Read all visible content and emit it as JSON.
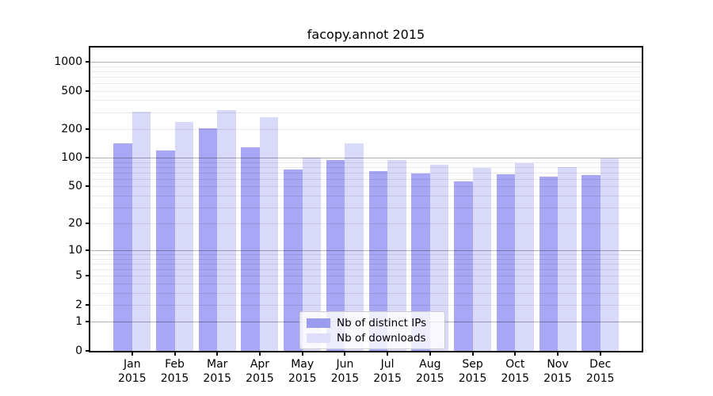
{
  "title": "facopy.annot 2015",
  "chart_data": {
    "type": "bar",
    "title": "facopy.annot 2015",
    "categories": [
      "Jan",
      "Feb",
      "Mar",
      "Apr",
      "May",
      "Jun",
      "Jul",
      "Aug",
      "Sep",
      "Oct",
      "Nov",
      "Dec"
    ],
    "x_tick_second_line": "2015",
    "series": [
      {
        "name": "Nb of distinct IPs",
        "legend_color": "#9b9bf0",
        "bar_color": "#a7a7f5",
        "values": [
          142,
          120,
          202,
          128,
          76,
          94,
          72,
          69,
          56,
          67,
          64,
          66
        ]
      },
      {
        "name": "Nb of downloads",
        "legend_color": "#dedefa",
        "bar_color": "#d9d9fa",
        "values": [
          303,
          235,
          312,
          264,
          100,
          142,
          95,
          85,
          78,
          88,
          80,
          98
        ]
      }
    ],
    "yscale": "log1p",
    "y_ticks": [
      0,
      1,
      2,
      5,
      10,
      20,
      50,
      100,
      200,
      500,
      1000
    ],
    "y_major_gridlines": [
      1,
      10,
      100,
      1000
    ],
    "ylim": [
      0,
      1400
    ],
    "grid": true,
    "legend_position": "lower center inside"
  }
}
